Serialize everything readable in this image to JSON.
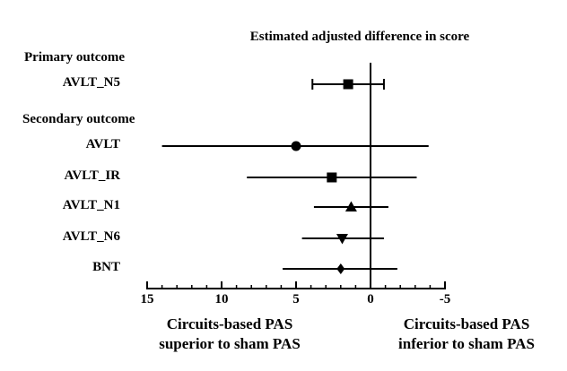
{
  "chart_data": {
    "type": "forest",
    "title": "Estimated adjusted difference in score",
    "x_axis": {
      "ticks": [
        15,
        10,
        5,
        0,
        -5
      ],
      "minor_tick_step": 1,
      "range": [
        15,
        -5
      ],
      "reversed": true,
      "zero_reference_line": 0
    },
    "groups": [
      {
        "heading": "Primary outcome",
        "rows": [
          {
            "label": "AVLT_N5",
            "marker": "square",
            "estimate": 1.5,
            "ci": [
              -0.9,
              3.9
            ],
            "caps": true
          }
        ]
      },
      {
        "heading": "Secondary outcome",
        "rows": [
          {
            "label": "AVLT",
            "marker": "circle",
            "estimate": 5.0,
            "ci": [
              -3.9,
              14.0
            ],
            "caps": false
          },
          {
            "label": "AVLT_IR",
            "marker": "square",
            "estimate": 2.6,
            "ci": [
              -3.1,
              8.3
            ],
            "caps": false
          },
          {
            "label": "AVLT_N1",
            "marker": "triangle-up",
            "estimate": 1.3,
            "ci": [
              -1.2,
              3.8
            ],
            "caps": false
          },
          {
            "label": "AVLT_N6",
            "marker": "triangle-down",
            "estimate": 1.9,
            "ci": [
              -0.9,
              4.6
            ],
            "caps": false
          },
          {
            "label": "BNT",
            "marker": "diamond",
            "estimate": 2.0,
            "ci": [
              -1.8,
              5.9
            ],
            "caps": false
          }
        ]
      }
    ],
    "footer": {
      "left_line1": "Circuits-based PAS",
      "left_line2": "superior to sham PAS",
      "right_line1": "Circuits-based PAS",
      "right_line2": "inferior to sham PAS"
    },
    "colors": {
      "ink": "#000000",
      "background": "#ffffff"
    }
  }
}
